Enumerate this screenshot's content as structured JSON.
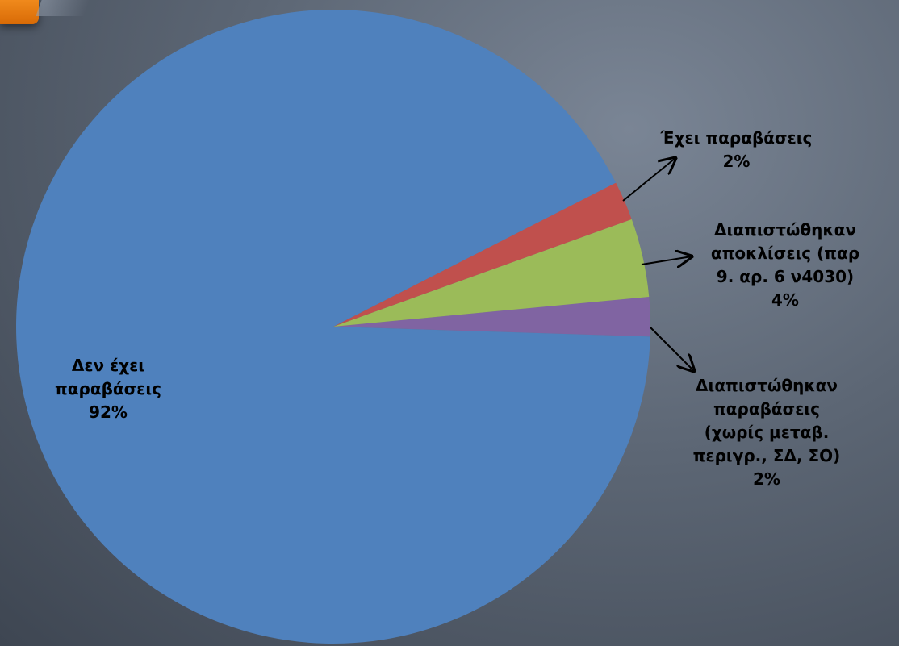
{
  "colors": {
    "no_violations": "#4f81bd",
    "has_violations": "#c0504d",
    "deviations": "#9bbb59",
    "violations_other": "#8064a2"
  },
  "chart_data": {
    "type": "pie",
    "title": "",
    "slices": [
      {
        "label": "Δεν έχει παραβάσεις",
        "value": 92,
        "pct_label": "92%",
        "color": "#4f81bd"
      },
      {
        "label": "Έχει παραβάσεις",
        "value": 2,
        "pct_label": "2%",
        "color": "#c0504d"
      },
      {
        "label": "Διαπιστώθηκαν αποκλίσεις (παρ 9. αρ. 6 ν4030)",
        "value": 4,
        "pct_label": "4%",
        "color": "#9bbb59"
      },
      {
        "label": "Διαπιστώθηκαν παραβάσεις (χωρίς μεταβ. περιγρ., ΣΔ, ΣΟ)",
        "value": 2,
        "pct_label": "2%",
        "color": "#8064a2"
      }
    ],
    "legend": "none"
  },
  "labels": {
    "no_violations": {
      "text": "Δεν έχει\nπαραβάσεις",
      "pct": "92%"
    },
    "has_violations": {
      "text": "Έχει παραβάσεις",
      "pct": "2%"
    },
    "deviations": {
      "text": "Διαπιστώθηκαν\nαποκλίσεις (παρ\n9. αρ. 6 ν4030)",
      "pct": "4%"
    },
    "violations_other": {
      "text": "Διαπιστώθηκαν\nπαραβάσεις\n(χωρίς μεταβ.\nπεριγρ., ΣΔ, ΣΟ)",
      "pct": "2%"
    }
  }
}
